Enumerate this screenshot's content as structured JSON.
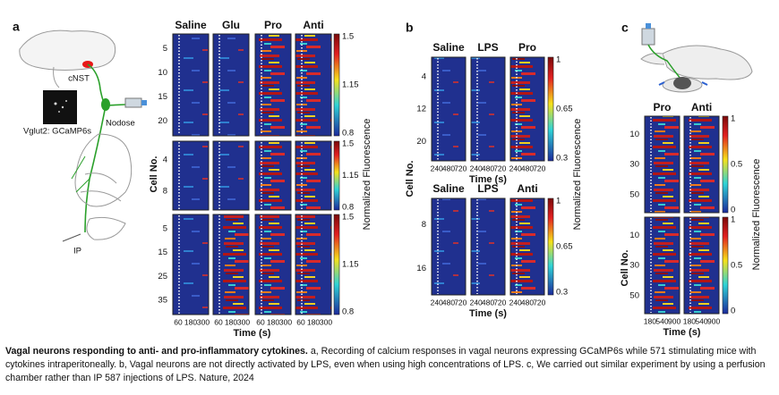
{
  "panels": [
    {
      "label": "a",
      "annotations": [
        "cNST",
        "Nodose",
        "Vglut2: GCaMP6s",
        "IP"
      ],
      "ylabel": "Cell No.",
      "colorbar_label": "Normalized Fluorescence",
      "groups": [
        {
          "columns": [
            "Saline",
            "Glu",
            "Pro",
            "Anti"
          ],
          "yticks": [
            "5",
            "10",
            "15",
            "20"
          ],
          "colorbar": [
            "1.5",
            "1.15",
            "0.8"
          ]
        },
        {
          "yticks": [
            "4",
            "8"
          ],
          "colorbar": [
            "1.5",
            "1.15",
            "0.8"
          ]
        },
        {
          "yticks": [
            "5",
            "15",
            "25",
            "35"
          ],
          "colorbar": [
            "1.5",
            "1.15",
            "0.8"
          ],
          "xticks": [
            "60",
            "180",
            "300"
          ],
          "xlabel": "Time (s)"
        }
      ]
    },
    {
      "label": "b",
      "ylabel": "Cell No.",
      "colorbar_label": "Normalized Fluorescence",
      "groups": [
        {
          "columns": [
            "Saline",
            "LPS",
            "Pro"
          ],
          "yticks": [
            "4",
            "12",
            "20"
          ],
          "colorbar": [
            "1",
            "0.65",
            "0.3"
          ],
          "xticks": [
            "240",
            "480",
            "720"
          ],
          "xlabel": "Time (s)"
        },
        {
          "columns": [
            "Saline",
            "LPS",
            "Anti"
          ],
          "yticks": [
            "8",
            "16"
          ],
          "colorbar": [
            "1",
            "0.65",
            "0.3"
          ],
          "xticks": [
            "240",
            "480",
            "720"
          ],
          "xlabel": "Time (s)"
        }
      ]
    },
    {
      "label": "c",
      "ylabel": "Cell No.",
      "colorbar_label": "Normalized Fluorescence",
      "groups": [
        {
          "columns": [
            "Pro",
            "Anti"
          ],
          "yticks": [
            "10",
            "30",
            "50"
          ],
          "colorbar": [
            "1",
            "0.5",
            "0"
          ]
        },
        {
          "yticks": [
            "10",
            "30",
            "50"
          ],
          "colorbar": [
            "1",
            "0.5",
            "0"
          ],
          "xticks": [
            "180",
            "540",
            "900"
          ],
          "xlabel": "Time (s)"
        }
      ]
    }
  ],
  "caption": {
    "title": "Vagal neurons responding to anti- and pro-inflammatory cytokines.",
    "text": "a, Recording of calcium responses in vagal neurons expressing GCaMP6s while 571 stimulating mice with cytokines intraperitoneally. b, Vagal neurons are not directly activated by LPS, even when using high concentrations of LPS. c, We carried out similar experiment by using a perfusion chamber rather than IP 587 injections of LPS. Nature, 2024"
  }
}
